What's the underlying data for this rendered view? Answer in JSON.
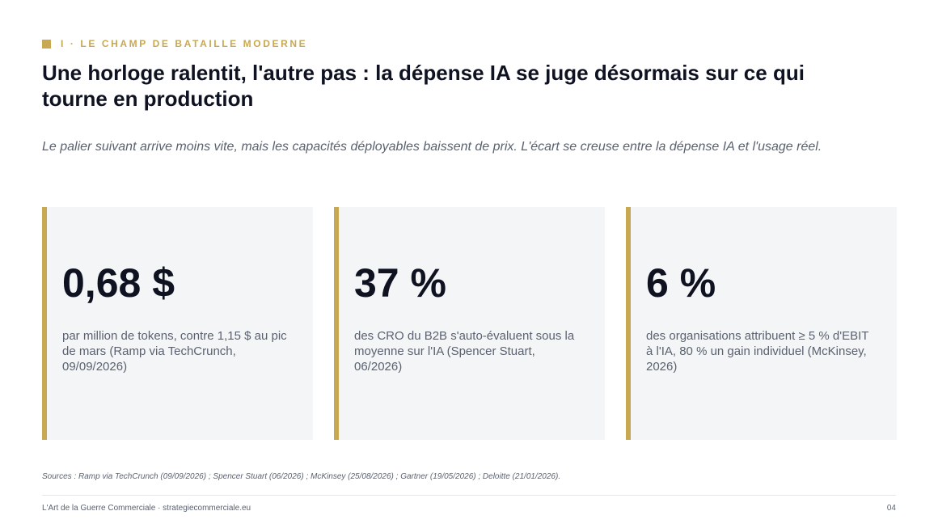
{
  "section": {
    "label": "I · LE CHAMP DE BATAILLE MODERNE"
  },
  "title": "Une horloge ralentit, l'autre pas : la dépense IA se juge désormais sur ce qui tourne en production",
  "subtitle": "Le palier suivant arrive moins vite, mais les capacités déployables baissent de prix. L'écart se creuse entre la dépense IA et l'usage réel.",
  "cards": [
    {
      "value": "0,68 $",
      "description": "par million de tokens, contre 1,15 $ au pic de mars (Ramp via TechCrunch, 09/09/2026)"
    },
    {
      "value": "37 %",
      "description": "des CRO du B2B s'auto-évaluent sous la moyenne sur l'IA (Spencer Stuart, 06/2026)"
    },
    {
      "value": "6 %",
      "description": "des organisations attribuent ≥ 5 % d'EBIT à l'IA, 80 % un gain individuel (McKinsey, 2026)"
    }
  ],
  "sources": "Sources : Ramp via TechCrunch (09/09/2026) ; Spencer Stuart (06/2026) ; McKinsey (25/08/2026) ; Gartner (19/05/2026) ; Deloitte (21/01/2026).",
  "footer": {
    "brand": "L'Art de la Guerre Commerciale · strategiecommerciale.eu",
    "page_number": "04"
  },
  "colors": {
    "accent": "#c8a850",
    "card_background": "#f4f5f7",
    "text_primary": "#0f1220",
    "text_muted": "#5a6270"
  }
}
